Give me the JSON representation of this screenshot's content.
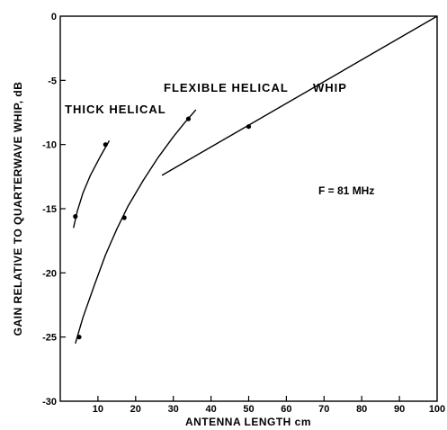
{
  "chart_data": {
    "type": "line",
    "xlabel": "ANTENNA LENGTH cm",
    "ylabel": "GAIN RELATIVE TO QUARTERWAVE WHIP, dB",
    "xlim": [
      0,
      100
    ],
    "ylim": [
      -30,
      0
    ],
    "x_ticks": [
      "10",
      "20",
      "30",
      "40",
      "50",
      "60",
      "70",
      "80",
      "90",
      "100"
    ],
    "y_ticks": [
      "0",
      "-5",
      "-10",
      "-15",
      "-20",
      "-25",
      "-30"
    ],
    "grid": false,
    "annotation": "F = 81 MHz",
    "series": [
      {
        "name": "THICK HELICAL",
        "curve": [
          [
            3.5,
            -16.5
          ],
          [
            4.5,
            -15.2
          ],
          [
            6,
            -13.8
          ],
          [
            8,
            -12.4
          ],
          [
            10.5,
            -11
          ],
          [
            13,
            -9.7
          ]
        ],
        "points": [
          [
            4,
            -15.6
          ],
          [
            12,
            -10
          ]
        ]
      },
      {
        "name": "FLEXIBLE HELICAL",
        "curve": [
          [
            4,
            -25.5
          ],
          [
            6,
            -23.5
          ],
          [
            9,
            -21
          ],
          [
            12,
            -18.6
          ],
          [
            15,
            -16.6
          ],
          [
            18,
            -14.8
          ],
          [
            22,
            -12.8
          ],
          [
            26,
            -11
          ],
          [
            30,
            -9.4
          ],
          [
            33,
            -8.3
          ],
          [
            36,
            -7.3
          ]
        ],
        "points": [
          [
            5,
            -25
          ],
          [
            17,
            -15.7
          ],
          [
            34,
            -8
          ]
        ]
      },
      {
        "name": "WHIP",
        "curve": [
          [
            27,
            -12.4
          ],
          [
            100,
            0
          ]
        ],
        "points": [
          [
            50,
            -8.6
          ]
        ]
      }
    ]
  }
}
